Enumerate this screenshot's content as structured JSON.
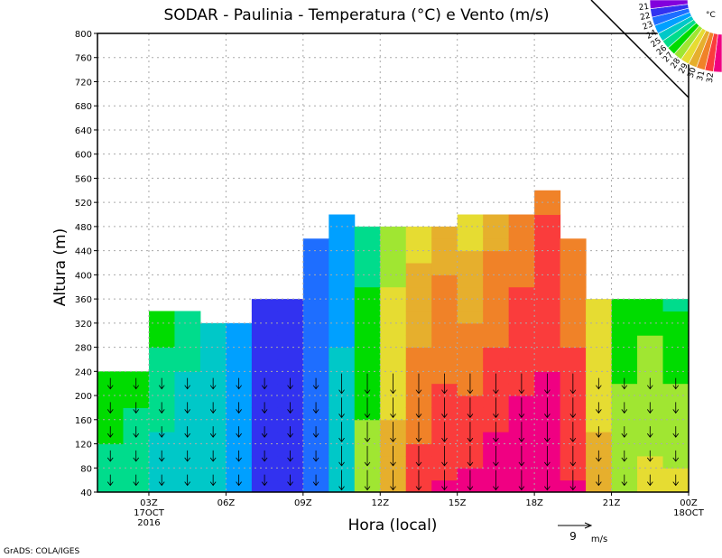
{
  "chart_data": {
    "type": "heatmap",
    "title": "SODAR - Paulinia - Temperatura (°C) e Vento (m/s)",
    "xlabel": "Hora (local)",
    "ylabel": "Altura (m)",
    "ylim": [
      40,
      800
    ],
    "yticks": [
      "40",
      "80",
      "120",
      "160",
      "200",
      "240",
      "280",
      "320",
      "360",
      "400",
      "440",
      "480",
      "520",
      "560",
      "600",
      "640",
      "680",
      "720",
      "760",
      "800"
    ],
    "xrange_hours": [
      1,
      24
    ],
    "xticks": [
      {
        "hour": 3,
        "label": "03Z",
        "sub1": "17OCT",
        "sub2": "2016"
      },
      {
        "hour": 6,
        "label": "06Z"
      },
      {
        "hour": 9,
        "label": "09Z"
      },
      {
        "hour": 12,
        "label": "12Z"
      },
      {
        "hour": 15,
        "label": "15Z"
      },
      {
        "hour": 18,
        "label": "18Z"
      },
      {
        "hour": 21,
        "label": "21Z"
      },
      {
        "hour": 24,
        "label": "00Z",
        "sub1": "18OCT"
      }
    ],
    "columns_hour_start": [
      1,
      2,
      3,
      4,
      5,
      6,
      7,
      8,
      9,
      10,
      11,
      12,
      13,
      14,
      15,
      16,
      17,
      18,
      19,
      20,
      21,
      22,
      23
    ],
    "column_top_m": [
      240,
      240,
      340,
      340,
      320,
      320,
      360,
      360,
      460,
      500,
      480,
      480,
      480,
      480,
      500,
      500,
      500,
      540,
      460,
      360,
      360,
      360,
      360
    ],
    "temp_bottom": [
      25.5,
      25.0,
      24.3,
      24.2,
      24.0,
      23.5,
      21.5,
      21.3,
      22.5,
      24.5,
      27.5,
      29.5,
      31.5,
      32.0,
      32.2,
      32.6,
      32.8,
      32.7,
      32.0,
      29.2,
      27.2,
      28.3,
      28.2
    ],
    "temp_top": [
      27.0,
      26.6,
      26.5,
      25.5,
      25.0,
      24.0,
      21.5,
      21.5,
      22.0,
      23.5,
      25.5,
      27.5,
      28.5,
      29.5,
      28.5,
      29.5,
      30.3,
      30.8,
      30.2,
      28.5,
      26.8,
      26.6,
      25.8
    ],
    "legend": {
      "unit": "°C",
      "labels": [
        "32",
        "31",
        "30",
        "29",
        "28",
        "27",
        "26",
        "25",
        "24",
        "23",
        "22",
        "21"
      ],
      "colors": [
        "#f00082",
        "#fa3c3c",
        "#f08228",
        "#e6af2d",
        "#e6dc32",
        "#a0e632",
        "#00dc00",
        "#00dc8c",
        "#00c8c8",
        "#00a0ff",
        "#1e6eff",
        "#3232f0",
        "#8200dc"
      ]
    },
    "wind_reference": {
      "value": "9",
      "unit": "m/s"
    }
  },
  "credit": "GrADS: COLA/IGES"
}
